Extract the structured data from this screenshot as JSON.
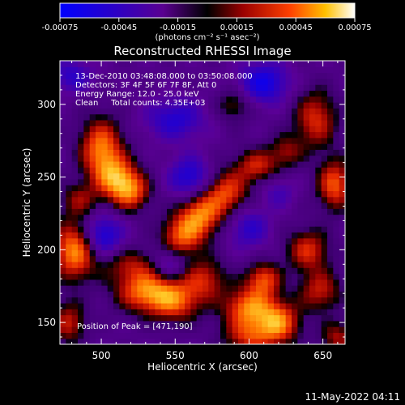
{
  "chart_data": {
    "type": "heatmap",
    "title": "Reconstructed RHESSI Image",
    "xlabel": "Heliocentric X (arcsec)",
    "ylabel": "Heliocentric Y (arcsec)",
    "xlim": [
      472,
      665
    ],
    "ylim": [
      135,
      330
    ],
    "xticks": [
      500,
      550,
      600,
      650
    ],
    "yticks": [
      150,
      200,
      250,
      300
    ],
    "colorbar": {
      "range": [
        -0.00075,
        0.00075
      ],
      "ticks": [
        "-0.00075",
        "-0.00045",
        "-0.00015",
        "0.00015",
        "0.00045",
        "0.00075"
      ],
      "unit_label": "(photons cm⁻² s⁻¹ asec⁻²)"
    },
    "annotations": [
      "13-Dec-2010 03:48:08.000 to 03:50:08.000",
      "Detectors: 3F 4F 5F 6F 7F 8F, Att 0",
      "Energy Range: 12.0 - 25.0 keV",
      "Clean     Total counts: 4.35E+03"
    ],
    "peak_label": "Position of Peak = [471,190]",
    "peak": [
      471,
      190
    ],
    "bright_regions": [
      {
        "x": 500,
        "y": 270,
        "sx": 10,
        "sy": 14,
        "v": 0.00062
      },
      {
        "x": 510,
        "y": 250,
        "sx": 10,
        "sy": 10,
        "v": 0.00055
      },
      {
        "x": 520,
        "y": 240,
        "sx": 9,
        "sy": 9,
        "v": 0.0005
      },
      {
        "x": 485,
        "y": 235,
        "sx": 9,
        "sy": 8,
        "v": 0.0003
      },
      {
        "x": 482,
        "y": 200,
        "sx": 10,
        "sy": 14,
        "v": 0.00068
      },
      {
        "x": 478,
        "y": 150,
        "sx": 8,
        "sy": 10,
        "v": 0.0004
      },
      {
        "x": 520,
        "y": 190,
        "sx": 14,
        "sy": 8,
        "v": 0.0003
      },
      {
        "x": 530,
        "y": 172,
        "sx": 14,
        "sy": 10,
        "v": 0.0006
      },
      {
        "x": 550,
        "y": 165,
        "sx": 12,
        "sy": 10,
        "v": 0.0005
      },
      {
        "x": 570,
        "y": 180,
        "sx": 10,
        "sy": 10,
        "v": 0.0004
      },
      {
        "x": 555,
        "y": 210,
        "sx": 10,
        "sy": 10,
        "v": 0.00055
      },
      {
        "x": 568,
        "y": 225,
        "sx": 10,
        "sy": 10,
        "v": 0.00058
      },
      {
        "x": 585,
        "y": 240,
        "sx": 10,
        "sy": 10,
        "v": 0.0005
      },
      {
        "x": 605,
        "y": 258,
        "sx": 10,
        "sy": 8,
        "v": 0.00042
      },
      {
        "x": 625,
        "y": 268,
        "sx": 8,
        "sy": 8,
        "v": 0.0003
      },
      {
        "x": 645,
        "y": 290,
        "sx": 10,
        "sy": 14,
        "v": 0.00045
      },
      {
        "x": 658,
        "y": 245,
        "sx": 8,
        "sy": 12,
        "v": 0.00055
      },
      {
        "x": 640,
        "y": 200,
        "sx": 10,
        "sy": 10,
        "v": 0.00045
      },
      {
        "x": 648,
        "y": 172,
        "sx": 10,
        "sy": 10,
        "v": 0.0004
      },
      {
        "x": 610,
        "y": 180,
        "sx": 8,
        "sy": 8,
        "v": 0.0005
      },
      {
        "x": 600,
        "y": 160,
        "sx": 12,
        "sy": 10,
        "v": 0.00062
      },
      {
        "x": 620,
        "y": 150,
        "sx": 10,
        "sy": 10,
        "v": 0.0006
      },
      {
        "x": 600,
        "y": 140,
        "sx": 12,
        "sy": 8,
        "v": 0.0004
      },
      {
        "x": 660,
        "y": 140,
        "sx": 8,
        "sy": 8,
        "v": 0.00035
      },
      {
        "x": 590,
        "y": 300,
        "sx": 8,
        "sy": 8,
        "v": 0.00028
      }
    ],
    "dark_regions": [
      {
        "x": 610,
        "y": 315,
        "sx": 12,
        "sy": 10,
        "v": -0.00045
      },
      {
        "x": 550,
        "y": 290,
        "sx": 14,
        "sy": 10,
        "v": -0.00035
      },
      {
        "x": 500,
        "y": 210,
        "sx": 10,
        "sy": 10,
        "v": -0.00045
      },
      {
        "x": 560,
        "y": 250,
        "sx": 10,
        "sy": 10,
        "v": -0.0004
      },
      {
        "x": 545,
        "y": 190,
        "sx": 8,
        "sy": 8,
        "v": -0.0003
      },
      {
        "x": 600,
        "y": 215,
        "sx": 10,
        "sy": 10,
        "v": -0.0003
      },
      {
        "x": 480,
        "y": 320,
        "sx": 10,
        "sy": 8,
        "v": -0.0003
      },
      {
        "x": 620,
        "y": 240,
        "sx": 8,
        "sy": 8,
        "v": -0.0002
      }
    ],
    "grid_cells": 48
  },
  "timestamp": "11-May-2022 04:11"
}
